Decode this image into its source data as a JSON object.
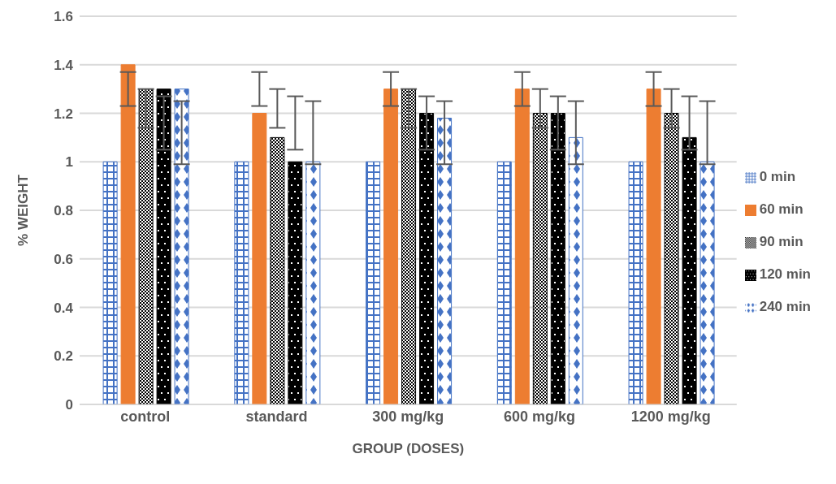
{
  "chart_data": {
    "type": "bar",
    "xlabel": "GROUP (DOSES)",
    "ylabel": "% WEIGHT",
    "categories": [
      "control",
      "standard",
      "300 mg/kg",
      "600 mg/kg",
      "1200 mg/kg"
    ],
    "series": [
      {
        "name": "0 min",
        "color": "#4472c4",
        "values": [
          1,
          1,
          1,
          1,
          1
        ]
      },
      {
        "name": "60 min",
        "color": "#ed7d31",
        "values": [
          1.4,
          1.2,
          1.3,
          1.3,
          1.3
        ],
        "errors": [
          [
            1.23,
            1.37
          ],
          [
            1.23,
            1.37
          ],
          [
            1.23,
            1.37
          ],
          [
            1.23,
            1.37
          ],
          [
            1.23,
            1.37
          ]
        ]
      },
      {
        "name": "90 min",
        "color": "#000000",
        "values": [
          1.3,
          1.1,
          1.3,
          1.2,
          1.2
        ],
        "errors": [
          [
            1.14,
            1.3
          ],
          [
            1.14,
            1.3
          ],
          [
            1.14,
            1.3
          ],
          [
            1.14,
            1.3
          ],
          [
            1.14,
            1.3
          ]
        ]
      },
      {
        "name": "120 min",
        "color": "#000000",
        "values": [
          1.3,
          1,
          1.2,
          1.2,
          1.1
        ],
        "errors": [
          [
            1.05,
            1.27
          ],
          [
            1.05,
            1.27
          ],
          [
            1.05,
            1.27
          ],
          [
            1.05,
            1.27
          ],
          [
            1.05,
            1.27
          ]
        ]
      },
      {
        "name": "240 min",
        "color": "#4472c4",
        "values": [
          1.3,
          1,
          1.18,
          1.1,
          1
        ],
        "errors": [
          [
            0.99,
            1.25
          ],
          [
            0.99,
            1.25
          ],
          [
            0.99,
            1.25
          ],
          [
            0.99,
            1.25
          ],
          [
            0.99,
            1.25
          ]
        ]
      }
    ],
    "ylim": [
      0,
      1.6
    ],
    "yticks": [
      0,
      0.2,
      0.4,
      0.6,
      0.8,
      1,
      1.2,
      1.4,
      1.6
    ],
    "grid": "y",
    "legend": "right"
  }
}
